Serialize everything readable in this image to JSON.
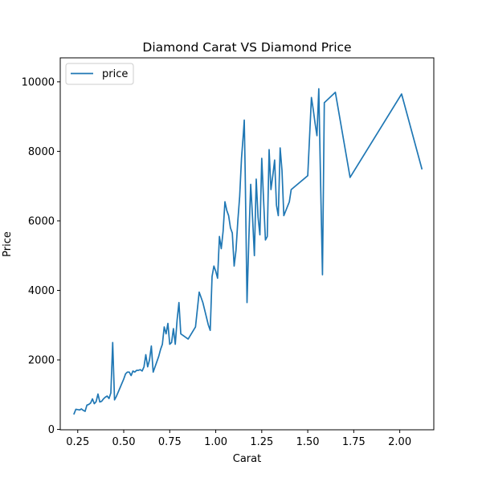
{
  "chart_data": {
    "type": "line",
    "title": "Diamond Carat VS Diamond Price",
    "xlabel": "Carat",
    "ylabel": "Price",
    "xlim": [
      0.155,
      2.185
    ],
    "ylim": [
      -10,
      10690
    ],
    "x_ticks": [
      0.25,
      0.5,
      0.75,
      1.0,
      1.25,
      1.5,
      1.75,
      2.0
    ],
    "x_tick_labels": [
      "0.25",
      "0.50",
      "0.75",
      "1.00",
      "1.25",
      "1.50",
      "1.75",
      "2.00"
    ],
    "y_ticks": [
      0,
      2000,
      4000,
      6000,
      8000,
      10000
    ],
    "y_tick_labels": [
      "0",
      "2000",
      "4000",
      "6000",
      "8000",
      "10000"
    ],
    "grid": false,
    "legend_position": "top-left",
    "series": [
      {
        "name": "price",
        "color": "#1f77b4",
        "points": [
          [
            0.23,
            450
          ],
          [
            0.24,
            580
          ],
          [
            0.26,
            560
          ],
          [
            0.27,
            590
          ],
          [
            0.28,
            550
          ],
          [
            0.29,
            520
          ],
          [
            0.3,
            700
          ],
          [
            0.31,
            720
          ],
          [
            0.32,
            760
          ],
          [
            0.33,
            880
          ],
          [
            0.34,
            740
          ],
          [
            0.35,
            800
          ],
          [
            0.36,
            1020
          ],
          [
            0.37,
            790
          ],
          [
            0.38,
            810
          ],
          [
            0.39,
            880
          ],
          [
            0.4,
            930
          ],
          [
            0.41,
            960
          ],
          [
            0.42,
            890
          ],
          [
            0.43,
            1050
          ],
          [
            0.44,
            2500
          ],
          [
            0.45,
            850
          ],
          [
            0.46,
            950
          ],
          [
            0.48,
            1200
          ],
          [
            0.5,
            1450
          ],
          [
            0.51,
            1600
          ],
          [
            0.52,
            1650
          ],
          [
            0.53,
            1650
          ],
          [
            0.54,
            1550
          ],
          [
            0.55,
            1680
          ],
          [
            0.56,
            1650
          ],
          [
            0.57,
            1700
          ],
          [
            0.58,
            1700
          ],
          [
            0.59,
            1720
          ],
          [
            0.6,
            1680
          ],
          [
            0.61,
            1800
          ],
          [
            0.62,
            2150
          ],
          [
            0.63,
            1800
          ],
          [
            0.64,
            2000
          ],
          [
            0.65,
            2400
          ],
          [
            0.66,
            1650
          ],
          [
            0.67,
            1800
          ],
          [
            0.69,
            2100
          ],
          [
            0.7,
            2300
          ],
          [
            0.71,
            2450
          ],
          [
            0.72,
            2950
          ],
          [
            0.73,
            2750
          ],
          [
            0.74,
            3050
          ],
          [
            0.75,
            2450
          ],
          [
            0.76,
            2500
          ],
          [
            0.77,
            2900
          ],
          [
            0.78,
            2450
          ],
          [
            0.79,
            3150
          ],
          [
            0.8,
            3650
          ],
          [
            0.81,
            2750
          ],
          [
            0.85,
            2600
          ],
          [
            0.89,
            2950
          ],
          [
            0.91,
            3950
          ],
          [
            0.93,
            3650
          ],
          [
            0.96,
            3000
          ],
          [
            0.97,
            2850
          ],
          [
            0.98,
            4400
          ],
          [
            0.99,
            4700
          ],
          [
            1.0,
            4550
          ],
          [
            1.01,
            4350
          ],
          [
            1.02,
            5550
          ],
          [
            1.03,
            5200
          ],
          [
            1.04,
            5700
          ],
          [
            1.05,
            6550
          ],
          [
            1.06,
            6300
          ],
          [
            1.07,
            6150
          ],
          [
            1.08,
            5800
          ],
          [
            1.09,
            5650
          ],
          [
            1.1,
            4700
          ],
          [
            1.11,
            5150
          ],
          [
            1.12,
            6000
          ],
          [
            1.13,
            6700
          ],
          [
            1.14,
            7800
          ],
          [
            1.15,
            8500
          ],
          [
            1.155,
            8900
          ],
          [
            1.16,
            7400
          ],
          [
            1.17,
            3650
          ],
          [
            1.18,
            5500
          ],
          [
            1.19,
            7050
          ],
          [
            1.2,
            6100
          ],
          [
            1.21,
            5000
          ],
          [
            1.22,
            7200
          ],
          [
            1.23,
            6100
          ],
          [
            1.24,
            5600
          ],
          [
            1.25,
            7800
          ],
          [
            1.26,
            6600
          ],
          [
            1.27,
            5450
          ],
          [
            1.28,
            5550
          ],
          [
            1.29,
            8050
          ],
          [
            1.3,
            6900
          ],
          [
            1.31,
            7300
          ],
          [
            1.32,
            7750
          ],
          [
            1.33,
            6450
          ],
          [
            1.34,
            6150
          ],
          [
            1.35,
            8100
          ],
          [
            1.36,
            7450
          ],
          [
            1.37,
            6150
          ],
          [
            1.4,
            6550
          ],
          [
            1.41,
            6900
          ],
          [
            1.5,
            7300
          ],
          [
            1.52,
            9550
          ],
          [
            1.53,
            9200
          ],
          [
            1.54,
            8800
          ],
          [
            1.55,
            8450
          ],
          [
            1.56,
            9800
          ],
          [
            1.57,
            7050
          ],
          [
            1.58,
            4450
          ],
          [
            1.59,
            9400
          ],
          [
            1.65,
            9700
          ],
          [
            1.73,
            7250
          ],
          [
            2.01,
            9650
          ],
          [
            2.12,
            7500
          ]
        ]
      }
    ]
  }
}
